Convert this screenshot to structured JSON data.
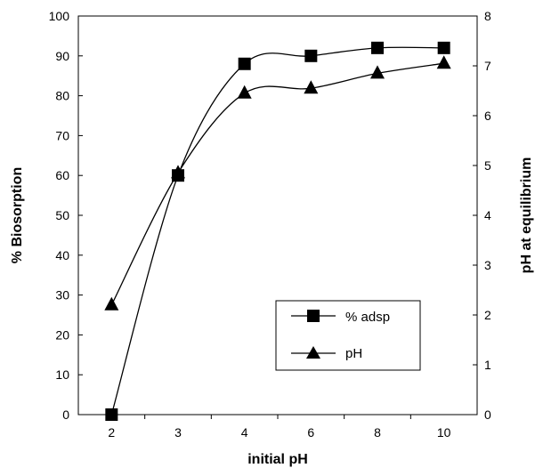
{
  "chart_data": {
    "type": "line",
    "categories": [
      "2",
      "3",
      "4",
      "6",
      "8",
      "10"
    ],
    "xlabel": "initial pH",
    "ylabel": "% Biosorption",
    "y2label": "pH at equilibrium",
    "ylim": [
      0,
      100
    ],
    "y2lim": [
      0,
      8
    ],
    "yticks": [
      "0",
      "10",
      "20",
      "30",
      "40",
      "50",
      "60",
      "70",
      "80",
      "90",
      "100"
    ],
    "y2ticks": [
      "0",
      "1",
      "2",
      "3",
      "4",
      "5",
      "6",
      "7",
      "8"
    ],
    "grid": false,
    "legend_position": "bottom-right",
    "series": [
      {
        "name": "% adsp",
        "axis": "left",
        "marker": "square",
        "values": [
          0,
          60,
          88,
          90,
          92,
          92
        ],
        "color": "#000000"
      },
      {
        "name": "pH",
        "axis": "right",
        "marker": "triangle",
        "values": [
          2.2,
          4.85,
          6.45,
          6.55,
          6.85,
          7.05
        ],
        "color": "#000000"
      }
    ]
  }
}
